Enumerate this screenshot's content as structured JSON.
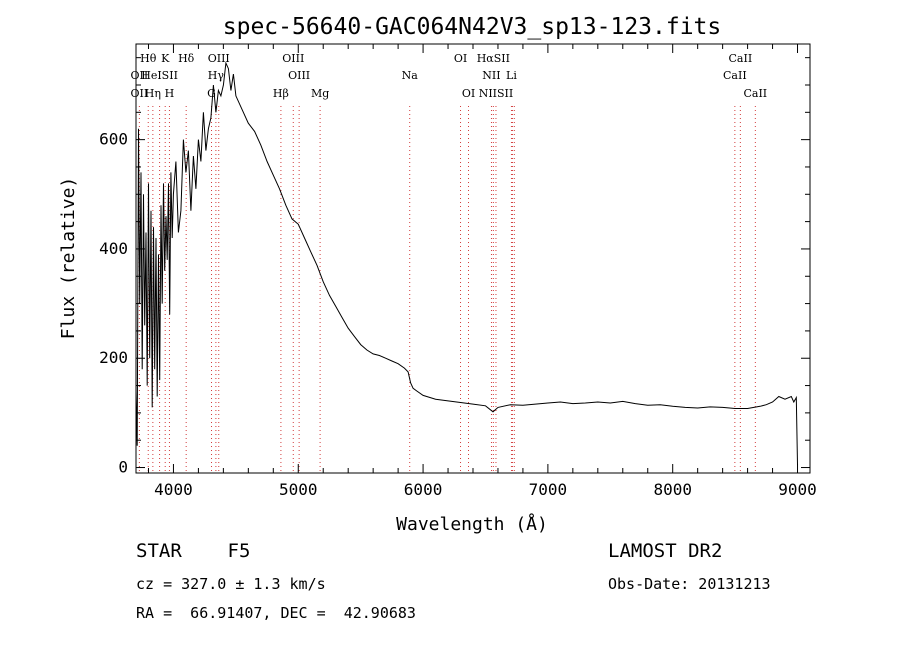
{
  "chart_data": {
    "type": "line",
    "title": "spec-56640-GAC064N42V3_sp13-123.fits",
    "xlabel": "Wavelength (Å)",
    "ylabel": "Flux (relative)",
    "xlim": [
      3700,
      9100
    ],
    "ylim": [
      -10,
      775
    ],
    "x_ticks": [
      4000,
      5000,
      6000,
      7000,
      8000,
      9000
    ],
    "y_ticks": [
      0,
      200,
      400,
      600
    ],
    "grid": false,
    "series": [
      {
        "x": [
          3700,
          3710,
          3720,
          3730,
          3740,
          3750,
          3760,
          3770,
          3780,
          3790,
          3800,
          3810,
          3820,
          3830,
          3840,
          3850,
          3860,
          3870,
          3880,
          3890,
          3900,
          3910,
          3920,
          3930,
          3940,
          3950,
          3960,
          3970,
          3980,
          3990,
          4000,
          4020,
          4040,
          4060,
          4080,
          4100,
          4120,
          4140,
          4160,
          4180,
          4200,
          4220,
          4240,
          4260,
          4280,
          4300,
          4320,
          4340,
          4360,
          4380,
          4400,
          4420,
          4440,
          4460,
          4480,
          4500,
          4550,
          4600,
          4650,
          4700,
          4750,
          4800,
          4850,
          4900,
          4950,
          5000,
          5050,
          5100,
          5150,
          5200,
          5250,
          5300,
          5350,
          5400,
          5450,
          5500,
          5550,
          5600,
          5650,
          5700,
          5750,
          5800,
          5850,
          5880,
          5900,
          5920,
          5950,
          6000,
          6100,
          6200,
          6300,
          6400,
          6500,
          6560,
          6600,
          6700,
          6800,
          6900,
          7000,
          7100,
          7200,
          7300,
          7400,
          7500,
          7600,
          7700,
          7800,
          7900,
          8000,
          8100,
          8200,
          8300,
          8400,
          8500,
          8600,
          8700,
          8750,
          8800,
          8850,
          8900,
          8950,
          8970,
          8990,
          9000
        ],
        "y": [
          140,
          40,
          620,
          300,
          540,
          180,
          500,
          260,
          430,
          150,
          520,
          200,
          470,
          110,
          440,
          180,
          420,
          130,
          390,
          160,
          480,
          300,
          520,
          360,
          460,
          380,
          520,
          280,
          540,
          420,
          500,
          560,
          430,
          470,
          600,
          540,
          580,
          470,
          570,
          510,
          600,
          560,
          650,
          580,
          620,
          640,
          700,
          650,
          690,
          680,
          700,
          740,
          730,
          690,
          720,
          680,
          655,
          630,
          615,
          590,
          560,
          535,
          510,
          480,
          455,
          445,
          420,
          395,
          370,
          340,
          315,
          295,
          275,
          255,
          240,
          225,
          215,
          208,
          205,
          200,
          195,
          190,
          182,
          175,
          155,
          145,
          140,
          132,
          125,
          122,
          119,
          116,
          113,
          102,
          110,
          115,
          114,
          116,
          118,
          120,
          117,
          118,
          120,
          118,
          121,
          117,
          114,
          115,
          112,
          110,
          109,
          111,
          110,
          108,
          108,
          112,
          115,
          120,
          130,
          125,
          130,
          120,
          128,
          5
        ]
      }
    ],
    "line_labels": [
      {
        "label": "Hθ",
        "wavelength": 3798,
        "row": 0
      },
      {
        "label": "K",
        "wavelength": 3934,
        "row": 0
      },
      {
        "label": "Hδ",
        "wavelength": 4102,
        "row": 0
      },
      {
        "label": "OIII",
        "wavelength": 4363,
        "row": 0
      },
      {
        "label": "OIII",
        "wavelength": 4960,
        "row": 0
      },
      {
        "label": "OI",
        "wavelength": 6300,
        "row": 0
      },
      {
        "label": "HαSII",
        "wavelength": 6563,
        "row": 0
      },
      {
        "label": "CaII",
        "wavelength": 8542,
        "row": 0
      },
      {
        "label": "OII",
        "wavelength": 3727,
        "row": 1
      },
      {
        "label": "HeISII",
        "wavelength": 3889,
        "row": 1
      },
      {
        "label": "Hγ",
        "wavelength": 4340,
        "row": 1
      },
      {
        "label": "OIII",
        "wavelength": 5007,
        "row": 1
      },
      {
        "label": "Na",
        "wavelength": 5893,
        "row": 1
      },
      {
        "label": "NII",
        "wavelength": 6548,
        "row": 1
      },
      {
        "label": "Li",
        "wavelength": 6708,
        "row": 1
      },
      {
        "label": "CaII",
        "wavelength": 8498,
        "row": 1
      },
      {
        "label": "OII",
        "wavelength": 3727,
        "row": 2
      },
      {
        "label": "Hη",
        "wavelength": 3835,
        "row": 2
      },
      {
        "label": "H",
        "wavelength": 3968,
        "row": 2
      },
      {
        "label": "G",
        "wavelength": 4305,
        "row": 2
      },
      {
        "label": "Hβ",
        "wavelength": 4861,
        "row": 2
      },
      {
        "label": "Mg",
        "wavelength": 5175,
        "row": 2
      },
      {
        "label": "OI",
        "wavelength": 6364,
        "row": 2
      },
      {
        "label": "NIISII",
        "wavelength": 6584,
        "row": 2
      },
      {
        "label": "CaII",
        "wavelength": 8662,
        "row": 2
      }
    ],
    "line_markers": [
      3727,
      3798,
      3835,
      3889,
      3934,
      3968,
      4102,
      4305,
      4340,
      4363,
      4861,
      4960,
      5007,
      5175,
      5893,
      6300,
      6364,
      6548,
      6563,
      6584,
      6708,
      6716,
      6731,
      8498,
      8542,
      8662
    ]
  },
  "info": {
    "object_class": "STAR    F5",
    "survey": "LAMOST DR2",
    "redshift": "cz = 327.0 ± 1.3 km/s",
    "obs_date": "Obs-Date: 20131213",
    "coords": "RA =  66.91407, DEC =  42.90683"
  }
}
